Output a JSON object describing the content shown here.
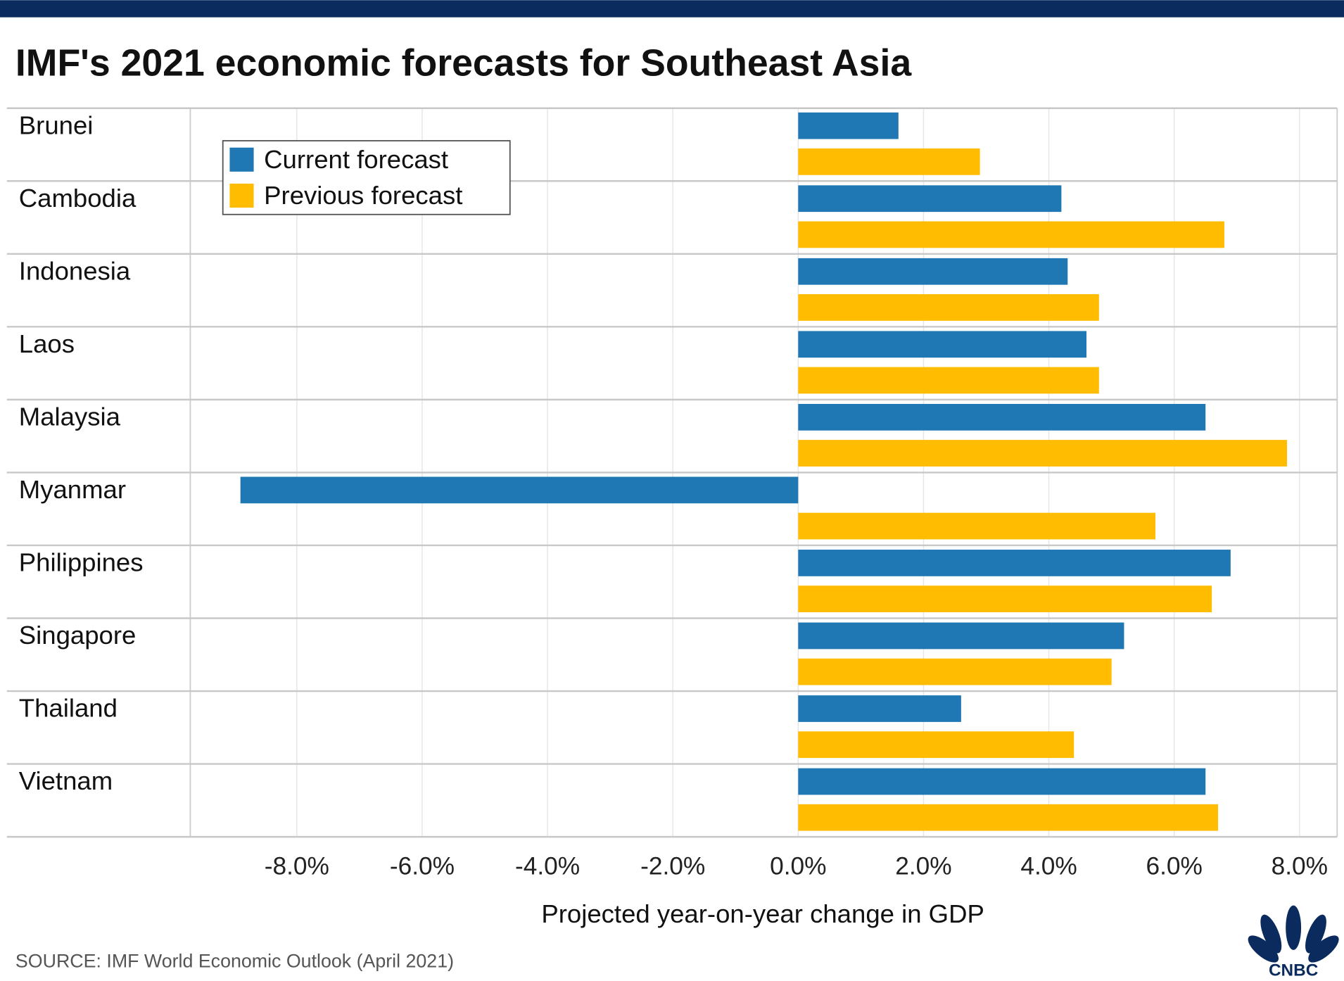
{
  "header": {
    "title": "IMF's 2021 economic forecasts for Southeast Asia",
    "bar_color": "#0b2b5e"
  },
  "footer": {
    "source": "SOURCE: IMF World Economic Outlook  (April 2021)",
    "logo": "CNBC"
  },
  "chart_data": {
    "type": "bar",
    "orientation": "horizontal",
    "title": "IMF's 2021 economic forecasts for Southeast Asia",
    "xlabel": "Projected year-on-year change in GDP",
    "ylabel": "",
    "categories": [
      "Brunei",
      "Cambodia",
      "Indonesia",
      "Laos",
      "Malaysia",
      "Myanmar",
      "Philippines",
      "Singapore",
      "Thailand",
      "Vietnam"
    ],
    "series": [
      {
        "name": "Current forecast",
        "color": "#1f77b4",
        "values": [
          1.6,
          4.2,
          4.3,
          4.6,
          6.5,
          -8.9,
          6.9,
          5.2,
          2.6,
          6.5
        ]
      },
      {
        "name": "Previous forecast",
        "color": "#ffbc00",
        "values": [
          2.9,
          6.8,
          4.8,
          4.8,
          7.8,
          5.7,
          6.6,
          5.0,
          4.4,
          6.7
        ]
      }
    ],
    "xticks": [
      -8,
      -6,
      -4,
      -2,
      0,
      2,
      4,
      6,
      8
    ],
    "xtick_labels": [
      "-8.0%",
      "-6.0%",
      "-4.0%",
      "-2.0%",
      "0.0%",
      "2.0%",
      "4.0%",
      "6.0%",
      "8.0%"
    ],
    "xlim": [
      -9.7,
      8.6
    ],
    "grid": true,
    "legend": "top-left"
  }
}
